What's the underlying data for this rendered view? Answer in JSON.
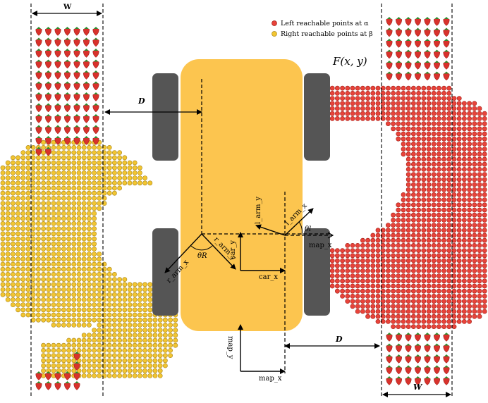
{
  "legend": {
    "left_label": "Left reachable points at α",
    "right_label": "Right reachable points at β",
    "left_color": "#e8433a",
    "right_color": "#f2c531"
  },
  "function_label": "F(x, y)",
  "labels": {
    "w_left": "W",
    "w_right": "W",
    "d_left": "D",
    "d_right": "D",
    "l_arm_y": "l_arm_y",
    "l_arm_x": "l_arm_x",
    "r_arm_y": "r_arm_y",
    "r_arm_x": "r_arm_x",
    "car_y": "car_y",
    "car_x": "car_x",
    "map_x_right": "map_x",
    "map_y": "map_y",
    "map_x_bottom": "map_x",
    "theta_l": "θl",
    "theta_r": "θR"
  },
  "colors": {
    "car_body": "#fcc54f",
    "wheel": "#555555",
    "strawberry": "#d8322c",
    "leaf": "#2f8a2f",
    "right_reach": "#f2c531",
    "left_reach": "#e8433a"
  },
  "icons": {
    "strawberry": "strawberry-icon",
    "left_point": "red-circle-icon",
    "right_point": "yellow-circle-icon"
  }
}
